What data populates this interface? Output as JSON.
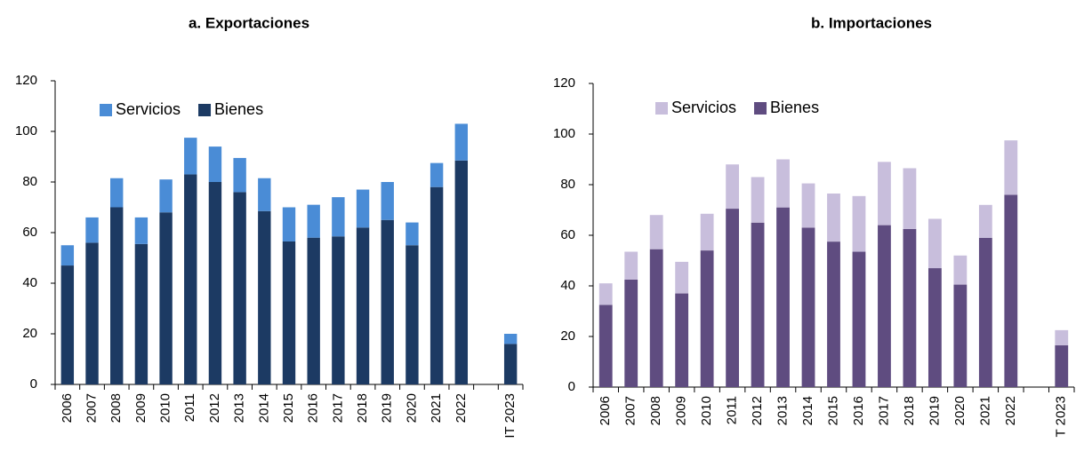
{
  "chart_data": [
    {
      "type": "bar",
      "stacked": true,
      "title": "a.    Exportaciones",
      "categories": [
        "2006",
        "2007",
        "2008",
        "2009",
        "2010",
        "2011",
        "2012",
        "2013",
        "2014",
        "2015",
        "2016",
        "2017",
        "2018",
        "2019",
        "2020",
        "2021",
        "2022",
        null,
        "IT 2023"
      ],
      "series": [
        {
          "name": "Bienes",
          "color": "#1c3a63",
          "values": [
            47,
            56,
            70,
            55.5,
            68,
            83,
            80,
            76,
            68.5,
            56.5,
            58,
            58.5,
            62,
            65,
            55,
            78,
            88.5,
            null,
            16
          ]
        },
        {
          "name": "Servicios",
          "color": "#4a8cd6",
          "values": [
            8,
            10,
            11.5,
            10.5,
            13,
            14.5,
            14,
            13.5,
            13,
            13.5,
            13,
            15.5,
            15,
            15,
            9,
            9.5,
            14.5,
            null,
            4
          ]
        }
      ],
      "ylim": [
        0,
        120
      ],
      "yticks": [
        0,
        20,
        40,
        60,
        80,
        100,
        120
      ],
      "legend": "top-left"
    },
    {
      "type": "bar",
      "stacked": true,
      "title": "b. Importaciones",
      "categories": [
        "2006",
        "2007",
        "2008",
        "2009",
        "2010",
        "2011",
        "2012",
        "2013",
        "2014",
        "2015",
        "2016",
        "2017",
        "2018",
        "2019",
        "2020",
        "2021",
        "2022",
        null,
        "T 2023"
      ],
      "series": [
        {
          "name": "Bienes",
          "color": "#5f4c80",
          "values": [
            32.5,
            42.5,
            54.5,
            37,
            54,
            70.5,
            65,
            71,
            63,
            57.5,
            53.5,
            64,
            62.5,
            47,
            40.5,
            59,
            76,
            null,
            16.5
          ]
        },
        {
          "name": "Servicios",
          "color": "#c8bedc",
          "values": [
            8.5,
            11,
            13.5,
            12.5,
            14.5,
            17.5,
            18,
            19,
            17.5,
            19,
            22,
            25,
            24,
            19.5,
            11.5,
            13,
            21.5,
            null,
            6
          ]
        }
      ],
      "ylim": [
        0,
        120
      ],
      "yticks": [
        0,
        20,
        40,
        60,
        80,
        100,
        120
      ],
      "legend": "top-left"
    }
  ]
}
